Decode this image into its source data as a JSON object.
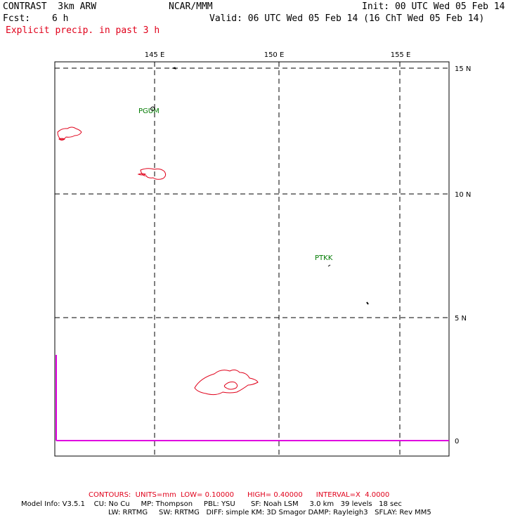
{
  "header": {
    "model": "CONTRAST  3km ARW",
    "org": "NCAR/MMM",
    "init": "Init: 00 UTC Wed 05 Feb 14",
    "fcst_label": "Fcst:",
    "fcst_value": "6 h",
    "valid": "Valid: 06 UTC Wed 05 Feb 14 (16 ChT Wed 05 Feb 14)",
    "field": "Explicit precip. in past 3 h"
  },
  "map": {
    "lon_labels": [
      "145 E",
      "150 E",
      "155 E"
    ],
    "lat_labels": [
      "15 N",
      "10 N",
      "5 N",
      "0"
    ],
    "stations": [
      "PGUM",
      "PTKK"
    ],
    "contour_color": "#e0001a",
    "accent_color": "#e000e0"
  },
  "footer": {
    "contours": "CONTOURS:  UNITS=mm  LOW= 0.10000      HIGH= 0.40000      INTERVAL=X  4.0000",
    "model_info_1": "Model Info: V3.5.1    CU: No Cu     MP: Thompson     PBL: YSU       SF: Noah LSM     3.0 km   39 levels   18 sec",
    "model_info_2": "LW: RRTMG     SW: RRTMG   DIFF: simple KM: 3D Smagor DAMP: Rayleigh3   SFLAY: Rev MM5"
  }
}
